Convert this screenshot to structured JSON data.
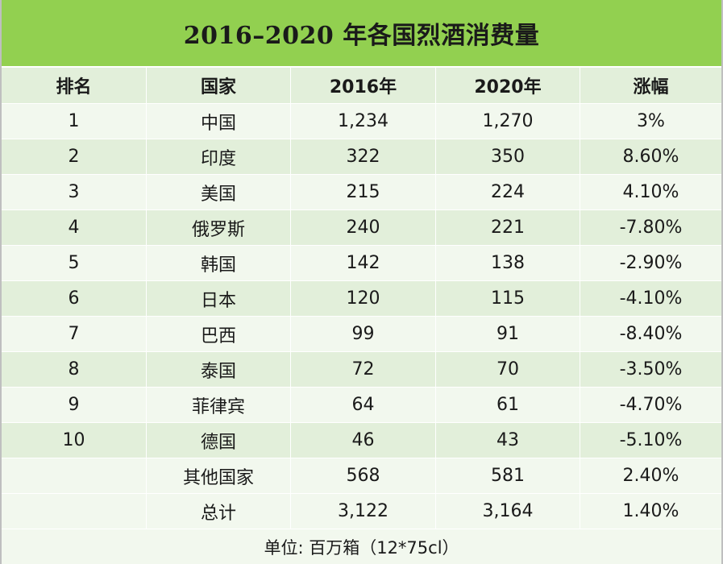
{
  "title": "2016–2020 年各国烈酒消费量",
  "columns": [
    "排名",
    "国家",
    "2016年",
    "2020年",
    "涨幅"
  ],
  "rows": [
    {
      "rank": "1",
      "country": "中国",
      "y2016": "1,234",
      "y2020": "1,270",
      "growth": "3%"
    },
    {
      "rank": "2",
      "country": "印度",
      "y2016": "322",
      "y2020": "350",
      "growth": "8.60%"
    },
    {
      "rank": "3",
      "country": "美国",
      "y2016": "215",
      "y2020": "224",
      "growth": "4.10%"
    },
    {
      "rank": "4",
      "country": "俄罗斯",
      "y2016": "240",
      "y2020": "221",
      "growth": "-7.80%"
    },
    {
      "rank": "5",
      "country": "韩国",
      "y2016": "142",
      "y2020": "138",
      "growth": "-2.90%"
    },
    {
      "rank": "6",
      "country": "日本",
      "y2016": "120",
      "y2020": "115",
      "growth": "-4.10%"
    },
    {
      "rank": "7",
      "country": "巴西",
      "y2016": "99",
      "y2020": "91",
      "growth": "-8.40%"
    },
    {
      "rank": "8",
      "country": "泰国",
      "y2016": "72",
      "y2020": "70",
      "growth": "-3.50%"
    },
    {
      "rank": "9",
      "country": "菲律宾",
      "y2016": "64",
      "y2020": "61",
      "growth": "-4.70%"
    },
    {
      "rank": "10",
      "country": "德国",
      "y2016": "46",
      "y2020": "43",
      "growth": "-5.10%"
    },
    {
      "rank": "",
      "country": "其他国家",
      "y2016": "568",
      "y2020": "581",
      "growth": "2.40%"
    },
    {
      "rank": "",
      "country": "总计",
      "y2016": "3,122",
      "y2020": "3,164",
      "growth": "1.40%"
    }
  ],
  "footnote": "单位: 百万箱（12*75cl）",
  "colors": {
    "title_bg": "#92d050",
    "row_light": "#f2f8ee",
    "row_dark": "#e2efda"
  }
}
